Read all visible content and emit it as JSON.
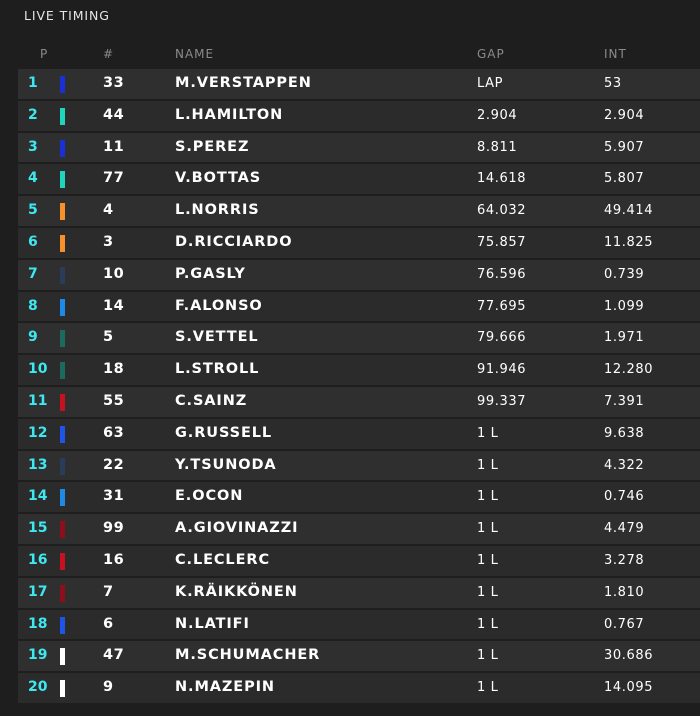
{
  "title": "LIVE TIMING",
  "columns": {
    "position": "P",
    "number": "#",
    "name": "NAME",
    "gap": "GAP",
    "interval": "INT"
  },
  "team_colors": {
    "red_bull": "#1b2fd6",
    "mercedes": "#20d5c0",
    "mclaren": "#f7902a",
    "alphatauri": "#2b3c5a",
    "alpine": "#1f8ae6",
    "aston_martin": "#1b6a5e",
    "ferrari": "#c61220",
    "williams": "#1d55e8",
    "alfa_romeo": "#8e0f1c",
    "haas": "#ffffff"
  },
  "rows": [
    {
      "pos": "1",
      "num": "33",
      "name": "M.VERSTAPPEN",
      "gap": "LAP",
      "int": "53",
      "color": "#1b2fd6"
    },
    {
      "pos": "2",
      "num": "44",
      "name": "L.HAMILTON",
      "gap": "2.904",
      "int": "2.904",
      "color": "#20d5c0"
    },
    {
      "pos": "3",
      "num": "11",
      "name": "S.PEREZ",
      "gap": "8.811",
      "int": "5.907",
      "color": "#1b2fd6"
    },
    {
      "pos": "4",
      "num": "77",
      "name": "V.BOTTAS",
      "gap": "14.618",
      "int": "5.807",
      "color": "#20d5c0"
    },
    {
      "pos": "5",
      "num": "4",
      "name": "L.NORRIS",
      "gap": "64.032",
      "int": "49.414",
      "color": "#f7902a"
    },
    {
      "pos": "6",
      "num": "3",
      "name": "D.RICCIARDO",
      "gap": "75.857",
      "int": "11.825",
      "color": "#f7902a"
    },
    {
      "pos": "7",
      "num": "10",
      "name": "P.GASLY",
      "gap": "76.596",
      "int": "0.739",
      "color": "#2b3c5a"
    },
    {
      "pos": "8",
      "num": "14",
      "name": "F.ALONSO",
      "gap": "77.695",
      "int": "1.099",
      "color": "#1f8ae6"
    },
    {
      "pos": "9",
      "num": "5",
      "name": "S.VETTEL",
      "gap": "79.666",
      "int": "1.971",
      "color": "#1b6a5e"
    },
    {
      "pos": "10",
      "num": "18",
      "name": "L.STROLL",
      "gap": "91.946",
      "int": "12.280",
      "color": "#1b6a5e"
    },
    {
      "pos": "11",
      "num": "55",
      "name": "C.SAINZ",
      "gap": "99.337",
      "int": "7.391",
      "color": "#c61220"
    },
    {
      "pos": "12",
      "num": "63",
      "name": "G.RUSSELL",
      "gap": "1 L",
      "int": "9.638",
      "color": "#1d55e8"
    },
    {
      "pos": "13",
      "num": "22",
      "name": "Y.TSUNODA",
      "gap": "1 L",
      "int": "4.322",
      "color": "#2b3c5a"
    },
    {
      "pos": "14",
      "num": "31",
      "name": "E.OCON",
      "gap": "1 L",
      "int": "0.746",
      "color": "#1f8ae6"
    },
    {
      "pos": "15",
      "num": "99",
      "name": "A.GIOVINAZZI",
      "gap": "1 L",
      "int": "4.479",
      "color": "#8e0f1c"
    },
    {
      "pos": "16",
      "num": "16",
      "name": "C.LECLERC",
      "gap": "1 L",
      "int": "3.278",
      "color": "#c61220"
    },
    {
      "pos": "17",
      "num": "7",
      "name": "K.RÄIKKÖNEN",
      "gap": "1 L",
      "int": "1.810",
      "color": "#8e0f1c"
    },
    {
      "pos": "18",
      "num": "6",
      "name": "N.LATIFI",
      "gap": "1 L",
      "int": "0.767",
      "color": "#1d55e8"
    },
    {
      "pos": "19",
      "num": "47",
      "name": "M.SCHUMACHER",
      "gap": "1 L",
      "int": "30.686",
      "color": "#ffffff"
    },
    {
      "pos": "20",
      "num": "9",
      "name": "N.MAZEPIN",
      "gap": "1 L",
      "int": "14.095",
      "color": "#ffffff"
    }
  ]
}
